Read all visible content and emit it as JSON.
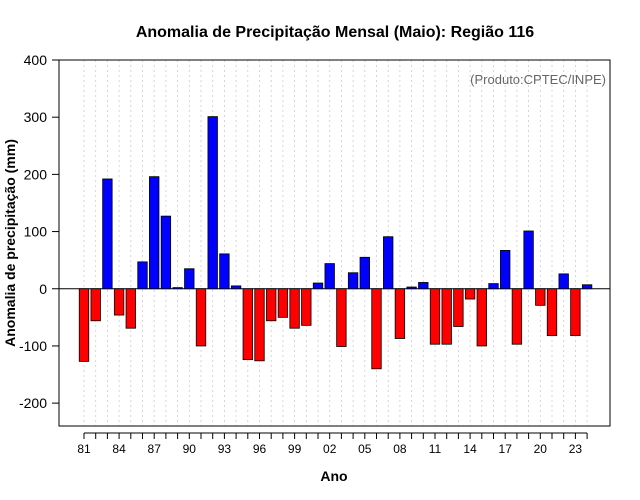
{
  "chart_data": {
    "type": "bar",
    "title": "Anomalia de Precipitação Mensal (Maio): Região 116",
    "annotation": "(Produto:CPTEC/INPE)",
    "xlabel": "Ano",
    "ylabel": "Anomalia de precipitação (mm)",
    "ylim": [
      -240,
      400
    ],
    "yticks": [
      -200,
      -100,
      0,
      100,
      200,
      300,
      400
    ],
    "x_tick_labels": [
      "81",
      "84",
      "87",
      "90",
      "93",
      "96",
      "99",
      "02",
      "05",
      "08",
      "11",
      "14",
      "17",
      "20",
      "23"
    ],
    "categories": [
      "1981",
      "1982",
      "1983",
      "1984",
      "1985",
      "1986",
      "1987",
      "1988",
      "1989",
      "1990",
      "1991",
      "1992",
      "1993",
      "1994",
      "1995",
      "1996",
      "1997",
      "1998",
      "1999",
      "2000",
      "2001",
      "2002",
      "2003",
      "2004",
      "2005",
      "2006",
      "2007",
      "2008",
      "2009",
      "2010",
      "2011",
      "2012",
      "2013",
      "2014",
      "2015",
      "2016",
      "2017",
      "2018",
      "2019",
      "2020",
      "2021",
      "2022",
      "2023",
      "2024"
    ],
    "values": [
      -127,
      -56,
      192,
      -46,
      -69,
      47,
      196,
      127,
      2,
      35,
      -100,
      301,
      61,
      5,
      -124,
      -126,
      -56,
      -50,
      -69,
      -64,
      10,
      44,
      -101,
      28,
      55,
      -140,
      91,
      -87,
      3,
      11,
      -97,
      -97,
      -66,
      -18,
      -100,
      9,
      67,
      -97,
      101,
      -29,
      -82,
      26,
      -82,
      7
    ],
    "grid": true,
    "colors": {
      "positive": "#0000ff",
      "negative": "#ff0000",
      "outline": "#000000",
      "grid": "#cccccc",
      "annotation": "#666666"
    }
  }
}
